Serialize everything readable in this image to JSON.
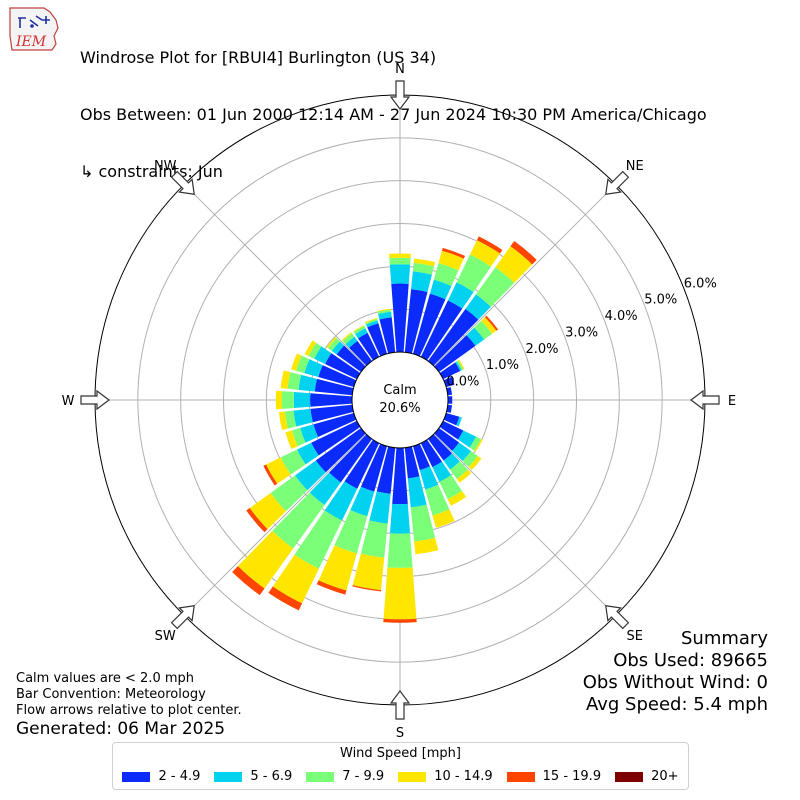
{
  "header": {
    "logo_text": "IEM",
    "line1": "Windrose Plot for [RBUI4] Burlington (US 34)",
    "line2": "Obs Between: 01 Jun 2000 12:14 AM - 27 Jun 2024 10:30 PM America/Chicago",
    "line3": "↳ constraints: Jun"
  },
  "summary": {
    "title": "Summary",
    "obs_used": "Obs Used: 89665",
    "obs_without_wind": "Obs Without Wind: 0",
    "avg_speed": "Avg Speed: 5.4 mph"
  },
  "notes": {
    "calm_def": "Calm values are < 2.0 mph",
    "bar_convention": "Bar Convention: Meteorology",
    "flow_arrows": "Flow arrows relative to plot center.",
    "generated": "Generated: 06 Mar 2025"
  },
  "legend": {
    "title": "Wind Speed [mph]",
    "items": [
      {
        "label": "2 - 4.9",
        "color": "#0a2bfb"
      },
      {
        "label": "5 - 6.9",
        "color": "#00d2f0"
      },
      {
        "label": "7 - 9.9",
        "color": "#7cff78"
      },
      {
        "label": "10 - 14.9",
        "color": "#ffe600"
      },
      {
        "label": "15 - 19.9",
        "color": "#ff4500"
      },
      {
        "label": "20+",
        "color": "#7f0000"
      }
    ]
  },
  "chart_data": {
    "type": "windrose",
    "calm_label": "Calm",
    "calm_value": "20.6%",
    "r_ticks": [
      "0.0%",
      "1.0%",
      "2.0%",
      "3.0%",
      "4.0%",
      "5.0%",
      "6.0%"
    ],
    "r_max": 6.0,
    "directions": [
      "N",
      "NE",
      "E",
      "SE",
      "S",
      "SW",
      "W",
      "NW"
    ],
    "direction_angles": [
      0,
      45,
      90,
      135,
      180,
      225,
      270,
      315
    ],
    "sector_width_deg": 10,
    "sector_angles": [
      0,
      10,
      20,
      30,
      40,
      50,
      60,
      70,
      80,
      90,
      100,
      110,
      120,
      130,
      140,
      150,
      160,
      170,
      180,
      190,
      200,
      210,
      220,
      230,
      240,
      250,
      260,
      270,
      280,
      290,
      300,
      310,
      320,
      330,
      340,
      350
    ],
    "bins": [
      "2 - 4.9",
      "5 - 6.9",
      "7 - 9.9",
      "10 - 14.9",
      "15 - 19.9",
      "20+"
    ],
    "cumulative": [
      [
        1.6,
        2.05,
        2.2,
        2.3,
        2.3,
        2.3
      ],
      [
        1.48,
        1.9,
        2.1,
        2.2,
        2.2,
        2.2
      ],
      [
        1.46,
        1.8,
        2.2,
        2.5,
        2.57,
        2.57
      ],
      [
        1.46,
        1.93,
        2.65,
        3.02,
        3.12,
        3.12
      ],
      [
        1.5,
        1.92,
        2.7,
        3.3,
        3.45,
        3.45
      ],
      [
        1.05,
        1.3,
        1.53,
        1.65,
        1.7,
        1.7
      ],
      [
        0.44,
        0.48,
        0.52,
        0.55,
        0.55,
        0.55
      ],
      [
        0.2,
        0.2,
        0.2,
        0.2,
        0.2,
        0.2
      ],
      [
        0.1,
        0.1,
        0.1,
        0.1,
        0.1,
        0.1
      ],
      [
        0.1,
        0.1,
        0.1,
        0.1,
        0.1,
        0.1
      ],
      [
        0.1,
        0.1,
        0.1,
        0.1,
        0.1,
        0.1
      ],
      [
        0.32,
        0.38,
        0.38,
        0.38,
        0.38,
        0.38
      ],
      [
        0.52,
        0.85,
        0.98,
        1.02,
        1.02,
        1.02
      ],
      [
        0.58,
        0.92,
        1.12,
        1.22,
        1.22,
        1.22
      ],
      [
        0.62,
        0.88,
        1.15,
        1.26,
        1.26,
        1.26
      ],
      [
        0.62,
        1.0,
        1.45,
        1.62,
        1.62,
        1.62
      ],
      [
        0.58,
        1.05,
        1.68,
        1.98,
        1.98,
        1.98
      ],
      [
        0.72,
        1.4,
        2.2,
        2.5,
        2.5,
        2.5
      ],
      [
        1.31,
        2.0,
        2.8,
        4.0,
        4.08,
        4.08
      ],
      [
        1.08,
        1.78,
        2.58,
        3.34,
        3.37,
        3.37
      ],
      [
        1.1,
        1.7,
        2.6,
        3.5,
        3.6,
        3.6
      ],
      [
        1.18,
        2.0,
        3.25,
        4.15,
        4.33,
        4.33
      ],
      [
        1.25,
        1.9,
        3.15,
        4.3,
        4.49,
        4.49
      ],
      [
        1.3,
        1.9,
        2.6,
        3.2,
        3.3,
        3.3
      ],
      [
        1.18,
        1.55,
        1.97,
        2.35,
        2.42,
        2.42
      ],
      [
        0.98,
        1.3,
        1.5,
        1.66,
        1.66,
        1.66
      ],
      [
        0.98,
        1.38,
        1.58,
        1.72,
        1.72,
        1.72
      ],
      [
        0.98,
        1.36,
        1.64,
        1.78,
        1.78,
        1.78
      ],
      [
        0.88,
        1.26,
        1.52,
        1.68,
        1.68,
        1.68
      ],
      [
        0.86,
        1.2,
        1.4,
        1.52,
        1.52,
        1.52
      ],
      [
        0.82,
        1.1,
        1.25,
        1.35,
        1.35,
        1.35
      ],
      [
        0.7,
        0.84,
        0.95,
        0.99,
        0.99,
        0.99
      ],
      [
        0.58,
        0.7,
        0.8,
        0.83,
        0.83,
        0.83
      ],
      [
        0.62,
        0.74,
        0.8,
        0.82,
        0.82,
        0.82
      ],
      [
        0.74,
        0.81,
        0.85,
        0.87,
        0.87,
        0.87
      ],
      [
        0.82,
        0.95,
        1.0,
        1.02,
        1.02,
        1.02
      ]
    ]
  }
}
